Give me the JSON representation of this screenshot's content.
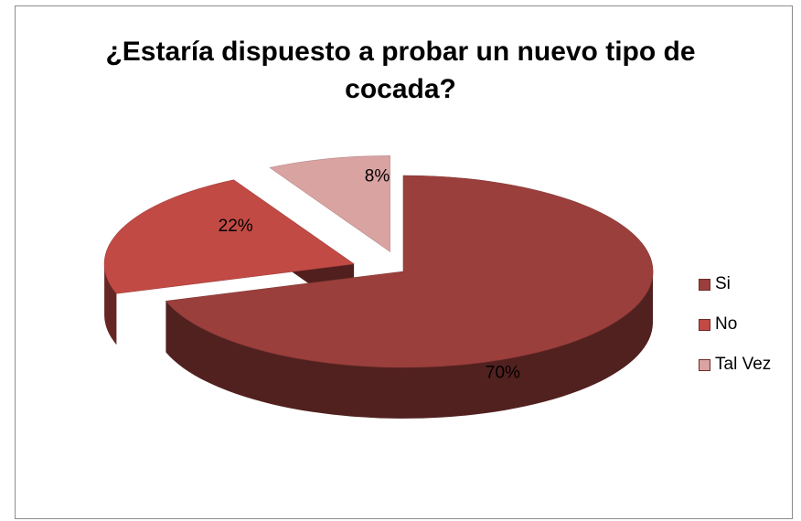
{
  "chart_data": {
    "type": "pie",
    "title": "¿Estaría dispuesto a probar un nuevo tipo de cocada?",
    "categories": [
      "Si",
      "No",
      "Tal Vez"
    ],
    "values": [
      70,
      22,
      8
    ],
    "value_labels": [
      "70%",
      "22%",
      "8%"
    ],
    "colors": [
      "#9b3f3c",
      "#c24a45",
      "#d9a3a1"
    ],
    "legend_position": "right",
    "style": "3d exploded"
  }
}
